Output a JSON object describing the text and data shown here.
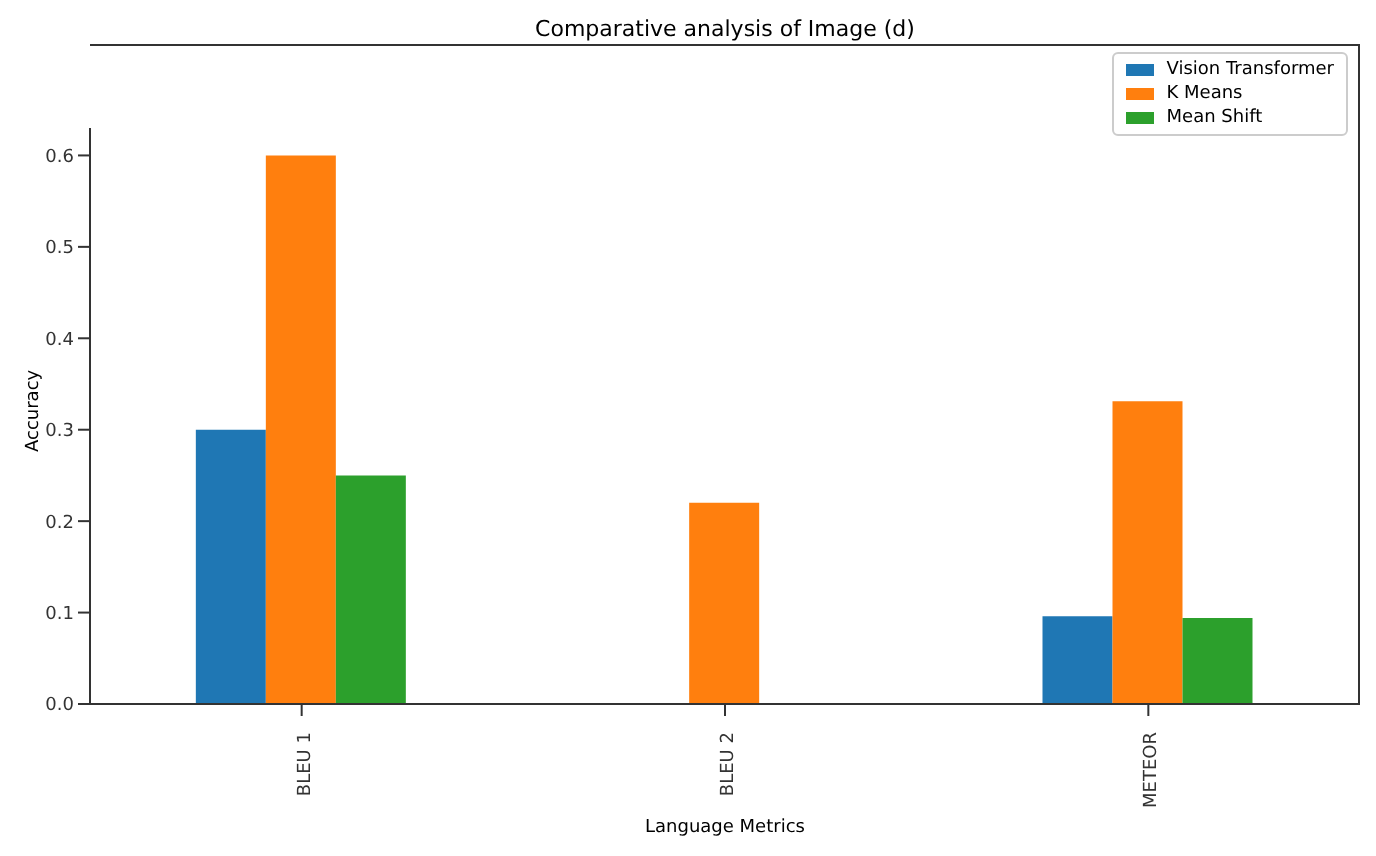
{
  "chart_data": {
    "type": "bar",
    "title": "Comparative analysis of Image (d)",
    "xlabel": "Language Metrics",
    "ylabel": "Accuracy",
    "categories": [
      "BLEU 1",
      "BLEU 2",
      "METEOR"
    ],
    "series": [
      {
        "name": "Vision Transformer",
        "color": "#1f77b4",
        "values": [
          0.3,
          0,
          0.096
        ]
      },
      {
        "name": "K Means",
        "color": "#ff7f0e",
        "values": [
          0.6,
          0.22,
          0.331
        ]
      },
      {
        "name": "Mean Shift",
        "color": "#2ca02c",
        "values": [
          0.25,
          0,
          0.094
        ]
      }
    ],
    "ylim": [
      0,
      0.63
    ],
    "yticks": [
      {
        "value": 0,
        "label": "0.0"
      },
      0.1,
      0.2,
      0.3,
      0.4,
      0.5,
      0.6
    ],
    "grid": false,
    "legend": "top right"
  }
}
